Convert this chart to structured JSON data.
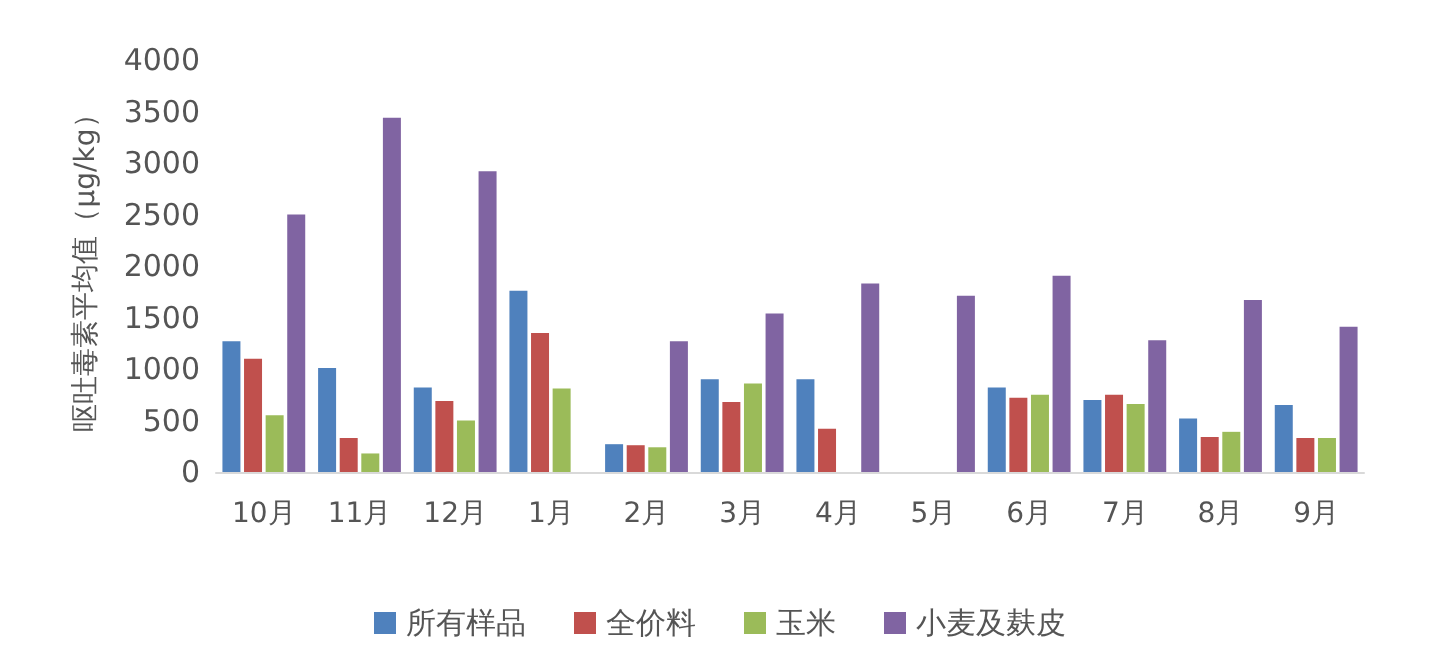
{
  "chart_data": {
    "type": "bar",
    "ylabel": "呕吐毒素平均值（μg/kg）",
    "categories": [
      "10月",
      "11月",
      "12月",
      "1月",
      "2月",
      "3月",
      "4月",
      "5月",
      "6月",
      "7月",
      "8月",
      "9月"
    ],
    "series": [
      {
        "name": "所有样品",
        "color": "#4f81bd",
        "values": [
          1270,
          1010,
          820,
          1760,
          270,
          900,
          900,
          null,
          820,
          700,
          520,
          650
        ]
      },
      {
        "name": "全价料",
        "color": "#c0504d",
        "values": [
          1100,
          330,
          690,
          1350,
          260,
          680,
          420,
          null,
          720,
          750,
          340,
          330
        ]
      },
      {
        "name": "玉米",
        "color": "#9bbb59",
        "values": [
          550,
          180,
          500,
          810,
          240,
          860,
          null,
          null,
          750,
          660,
          390,
          330
        ]
      },
      {
        "name": "小麦及麸皮",
        "color": "#8064a2",
        "values": [
          2500,
          3440,
          2920,
          null,
          1270,
          1540,
          1830,
          1710,
          1905,
          1280,
          1670,
          1410
        ]
      }
    ],
    "ylim": [
      0,
      4000
    ],
    "yticks": [
      0,
      500,
      1000,
      1500,
      2000,
      2500,
      3000,
      3500,
      4000
    ],
    "grid": false,
    "legend": "bottom"
  }
}
